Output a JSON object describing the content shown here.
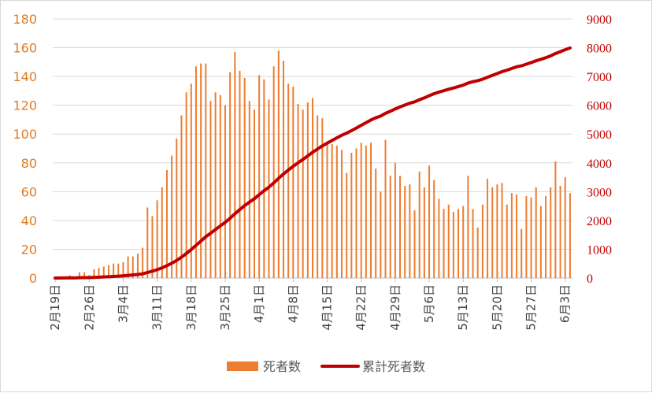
{
  "chart_data": {
    "type": "bar+line",
    "title": "",
    "xlabel": "",
    "ylabel": "",
    "y_left": {
      "min": 0,
      "max": 180,
      "step": 20,
      "color": "#e07b24"
    },
    "y_right": {
      "min": 0,
      "max": 9000,
      "step": 1000,
      "color": "#c00000"
    },
    "grid": true,
    "legend_position": "bottom",
    "x_tick_labels": [
      "2月19日",
      "2月26日",
      "3月4日",
      "3月11日",
      "3月18日",
      "3月25日",
      "4月1日",
      "4月8日",
      "4月15日",
      "4月22日",
      "4月29日",
      "5月6日",
      "5月13日",
      "5月20日",
      "5月27日",
      "6月3日"
    ],
    "start_date": "2月19日",
    "series": [
      {
        "name": "死者数",
        "axis": "left",
        "type": "bar",
        "color": "#ed7d31",
        "values": [
          0,
          1,
          1,
          2,
          1,
          4,
          4,
          2,
          6,
          7,
          8,
          9,
          10,
          10,
          11,
          15,
          15,
          17,
          21,
          49,
          43,
          54,
          63,
          75,
          85,
          97,
          113,
          129,
          135,
          147,
          149,
          149,
          123,
          129,
          127,
          120,
          143,
          157,
          144,
          139,
          123,
          117,
          141,
          138,
          124,
          147,
          158,
          151,
          135,
          133,
          121,
          117,
          122,
          125,
          113,
          111,
          95,
          93,
          92,
          89,
          73,
          87,
          90,
          94,
          92,
          94,
          76,
          60,
          96,
          71,
          80,
          71,
          64,
          65,
          47,
          74,
          63,
          78,
          68,
          55,
          48,
          51,
          46,
          48,
          50,
          71,
          48,
          35,
          51,
          69,
          63,
          65,
          66,
          51,
          59,
          58,
          34,
          57,
          56,
          63,
          50,
          57,
          63,
          81,
          64,
          70,
          59
        ]
      },
      {
        "name": "累計死者数",
        "axis": "right",
        "type": "line",
        "color": "#c00000",
        "values": [
          0,
          1,
          2,
          4,
          5,
          9,
          13,
          15,
          21,
          28,
          36,
          45,
          55,
          65,
          76,
          91,
          106,
          123,
          144,
          193,
          236,
          290,
          353,
          428,
          513,
          610,
          723,
          852,
          987,
          1134,
          1283,
          1432,
          1555,
          1684,
          1811,
          1931,
          2074,
          2231,
          2375,
          2514,
          2637,
          2754,
          2895,
          3033,
          3157,
          3304,
          3462,
          3613,
          3748,
          3881,
          4002,
          4119,
          4241,
          4366,
          4479,
          4590,
          4685,
          4778,
          4870,
          4959,
          5032,
          5119,
          5209,
          5303,
          5395,
          5489,
          5565,
          5625,
          5721,
          5792,
          5872,
          5943,
          6007,
          6072,
          6119,
          6193,
          6256,
          6334,
          6402,
          6457,
          6505,
          6556,
          6602,
          6650,
          6700,
          6771,
          6819,
          6854,
          6905,
          6974,
          7037,
          7102,
          7168,
          7219,
          7278,
          7336,
          7370,
          7427,
          7483,
          7546,
          7596,
          7653,
          7716,
          7797,
          7861,
          7931,
          7990
        ]
      }
    ]
  }
}
